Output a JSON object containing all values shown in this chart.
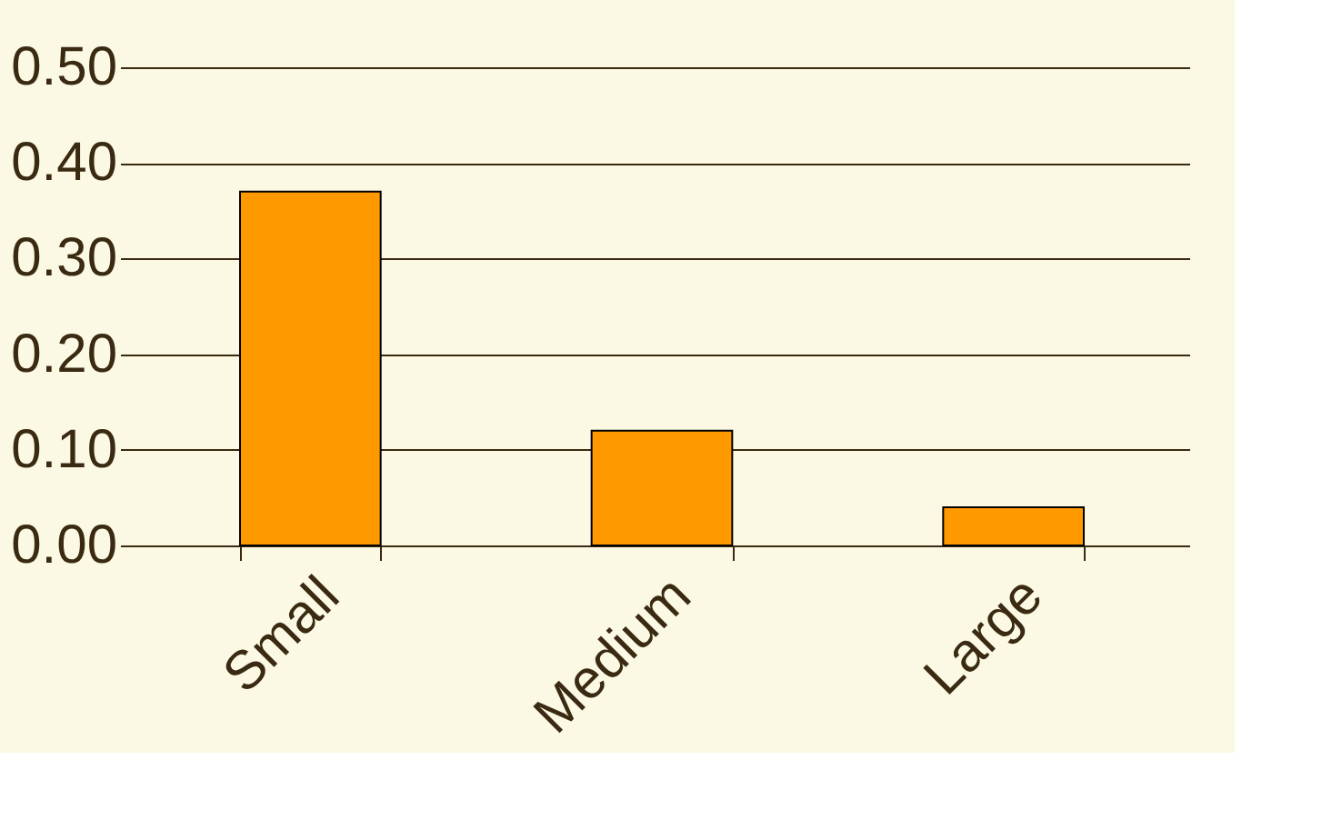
{
  "chart_data": {
    "type": "bar",
    "categories": [
      "Small",
      "Medium",
      "Large"
    ],
    "values": [
      0.37,
      0.12,
      0.04
    ],
    "color": "#ff9900",
    "ylim": [
      0,
      0.5
    ],
    "yticks": [
      {
        "value": 0,
        "label": "0.00"
      },
      {
        "value": 0.1,
        "label": "0.10"
      },
      {
        "value": 0.2,
        "label": "0.20"
      },
      {
        "value": 0.3,
        "label": "0.30"
      },
      {
        "value": 0.4,
        "label": "0.40"
      },
      {
        "value": 0.5,
        "label": "0.50"
      }
    ],
    "grid": "y"
  }
}
